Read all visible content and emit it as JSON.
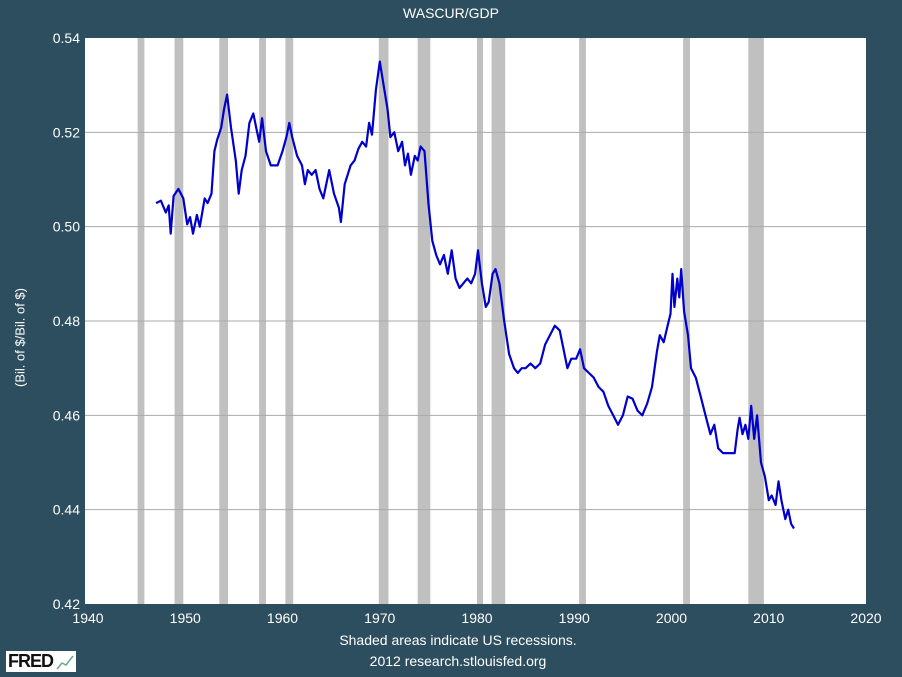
{
  "chart_data": {
    "type": "line",
    "title": "WASCUR/GDP",
    "ylabel": "(Bil. of $/Bil. of $)",
    "xlabel": "",
    "xlim": [
      1940,
      2020
    ],
    "ylim": [
      0.42,
      0.54
    ],
    "xticks": [
      1940,
      1950,
      1960,
      1970,
      1980,
      1990,
      2000,
      2010,
      2020
    ],
    "yticks": [
      "0.42",
      "0.44",
      "0.46",
      "0.48",
      "0.50",
      "0.52",
      "0.54"
    ],
    "grid": "horizontal",
    "line_color": "#0000cc",
    "recession_color": "#c0c0c0",
    "recessions": [
      [
        1945.1,
        1945.8
      ],
      [
        1948.9,
        1949.8
      ],
      [
        1953.5,
        1954.4
      ],
      [
        1957.6,
        1958.3
      ],
      [
        1960.3,
        1961.1
      ],
      [
        1969.9,
        1970.9
      ],
      [
        1973.9,
        1975.2
      ],
      [
        1980.0,
        1980.5
      ],
      [
        1981.5,
        1982.9
      ],
      [
        1990.5,
        1991.2
      ],
      [
        2001.2,
        2001.9
      ],
      [
        2007.9,
        2009.5
      ]
    ],
    "points": [
      [
        1947.0,
        0.505
      ],
      [
        1947.5,
        0.5055
      ],
      [
        1948.0,
        0.503
      ],
      [
        1948.3,
        0.5045
      ],
      [
        1948.5,
        0.4985
      ],
      [
        1948.8,
        0.5065
      ],
      [
        1949.3,
        0.508
      ],
      [
        1949.8,
        0.506
      ],
      [
        1950.2,
        0.5005
      ],
      [
        1950.5,
        0.502
      ],
      [
        1950.8,
        0.4985
      ],
      [
        1951.2,
        0.5025
      ],
      [
        1951.5,
        0.5
      ],
      [
        1952.0,
        0.506
      ],
      [
        1952.3,
        0.505
      ],
      [
        1952.7,
        0.507
      ],
      [
        1953.0,
        0.516
      ],
      [
        1953.3,
        0.5185
      ],
      [
        1953.7,
        0.521
      ],
      [
        1954.0,
        0.525
      ],
      [
        1954.3,
        0.528
      ],
      [
        1954.7,
        0.521
      ],
      [
        1955.2,
        0.514
      ],
      [
        1955.5,
        0.507
      ],
      [
        1955.8,
        0.512
      ],
      [
        1956.2,
        0.515
      ],
      [
        1956.6,
        0.522
      ],
      [
        1957.0,
        0.524
      ],
      [
        1957.3,
        0.521
      ],
      [
        1957.6,
        0.518
      ],
      [
        1957.9,
        0.523
      ],
      [
        1958.3,
        0.516
      ],
      [
        1958.8,
        0.513
      ],
      [
        1959.5,
        0.513
      ],
      [
        1960.0,
        0.516
      ],
      [
        1960.4,
        0.519
      ],
      [
        1960.7,
        0.522
      ],
      [
        1961.0,
        0.519
      ],
      [
        1961.5,
        0.515
      ],
      [
        1962.0,
        0.513
      ],
      [
        1962.3,
        0.509
      ],
      [
        1962.6,
        0.512
      ],
      [
        1963.0,
        0.511
      ],
      [
        1963.4,
        0.512
      ],
      [
        1963.8,
        0.508
      ],
      [
        1964.2,
        0.506
      ],
      [
        1964.8,
        0.512
      ],
      [
        1965.3,
        0.507
      ],
      [
        1965.8,
        0.504
      ],
      [
        1966.0,
        0.501
      ],
      [
        1966.4,
        0.509
      ],
      [
        1967.0,
        0.513
      ],
      [
        1967.4,
        0.514
      ],
      [
        1967.8,
        0.5165
      ],
      [
        1968.2,
        0.518
      ],
      [
        1968.6,
        0.517
      ],
      [
        1968.9,
        0.522
      ],
      [
        1969.2,
        0.5195
      ],
      [
        1969.6,
        0.529
      ],
      [
        1970.0,
        0.535
      ],
      [
        1970.4,
        0.53
      ],
      [
        1970.8,
        0.525
      ],
      [
        1971.1,
        0.519
      ],
      [
        1971.5,
        0.52
      ],
      [
        1971.9,
        0.516
      ],
      [
        1972.3,
        0.518
      ],
      [
        1972.6,
        0.513
      ],
      [
        1972.9,
        0.5155
      ],
      [
        1973.2,
        0.511
      ],
      [
        1973.6,
        0.515
      ],
      [
        1973.9,
        0.514
      ],
      [
        1974.2,
        0.517
      ],
      [
        1974.6,
        0.516
      ],
      [
        1975.0,
        0.505
      ],
      [
        1975.4,
        0.497
      ],
      [
        1975.8,
        0.494
      ],
      [
        1976.2,
        0.492
      ],
      [
        1976.6,
        0.494
      ],
      [
        1977.0,
        0.49
      ],
      [
        1977.4,
        0.495
      ],
      [
        1977.8,
        0.489
      ],
      [
        1978.2,
        0.487
      ],
      [
        1978.6,
        0.488
      ],
      [
        1979.0,
        0.489
      ],
      [
        1979.4,
        0.488
      ],
      [
        1979.8,
        0.49
      ],
      [
        1980.1,
        0.495
      ],
      [
        1980.5,
        0.488
      ],
      [
        1980.9,
        0.483
      ],
      [
        1981.2,
        0.484
      ],
      [
        1981.6,
        0.49
      ],
      [
        1981.9,
        0.491
      ],
      [
        1982.3,
        0.488
      ],
      [
        1982.8,
        0.48
      ],
      [
        1983.3,
        0.473
      ],
      [
        1983.8,
        0.47
      ],
      [
        1984.2,
        0.469
      ],
      [
        1984.6,
        0.47
      ],
      [
        1985.0,
        0.47
      ],
      [
        1985.5,
        0.471
      ],
      [
        1986.0,
        0.47
      ],
      [
        1986.5,
        0.471
      ],
      [
        1987.0,
        0.475
      ],
      [
        1987.5,
        0.477
      ],
      [
        1988.0,
        0.479
      ],
      [
        1988.5,
        0.478
      ],
      [
        1989.0,
        0.473
      ],
      [
        1989.3,
        0.47
      ],
      [
        1989.7,
        0.472
      ],
      [
        1990.2,
        0.472
      ],
      [
        1990.6,
        0.474
      ],
      [
        1991.0,
        0.47
      ],
      [
        1991.5,
        0.469
      ],
      [
        1992.0,
        0.468
      ],
      [
        1992.5,
        0.466
      ],
      [
        1993.0,
        0.465
      ],
      [
        1993.5,
        0.462
      ],
      [
        1994.0,
        0.46
      ],
      [
        1994.5,
        0.458
      ],
      [
        1995.0,
        0.46
      ],
      [
        1995.5,
        0.464
      ],
      [
        1996.0,
        0.4635
      ],
      [
        1996.5,
        0.461
      ],
      [
        1997.0,
        0.46
      ],
      [
        1997.5,
        0.4625
      ],
      [
        1998.0,
        0.466
      ],
      [
        1998.5,
        0.4735
      ],
      [
        1998.8,
        0.477
      ],
      [
        1999.2,
        0.4755
      ],
      [
        1999.6,
        0.479
      ],
      [
        1999.9,
        0.4815
      ],
      [
        2000.1,
        0.49
      ],
      [
        2000.3,
        0.483
      ],
      [
        2000.6,
        0.489
      ],
      [
        2000.8,
        0.485
      ],
      [
        2001.0,
        0.491
      ],
      [
        2001.3,
        0.482
      ],
      [
        2001.7,
        0.477
      ],
      [
        2002.0,
        0.47
      ],
      [
        2002.5,
        0.468
      ],
      [
        2003.0,
        0.464
      ],
      [
        2003.5,
        0.46
      ],
      [
        2004.0,
        0.456
      ],
      [
        2004.4,
        0.458
      ],
      [
        2004.8,
        0.453
      ],
      [
        2005.3,
        0.452
      ],
      [
        2006.0,
        0.452
      ],
      [
        2006.5,
        0.452
      ],
      [
        2006.8,
        0.457
      ],
      [
        2007.0,
        0.4595
      ],
      [
        2007.3,
        0.456
      ],
      [
        2007.6,
        0.458
      ],
      [
        2007.9,
        0.455
      ],
      [
        2008.2,
        0.462
      ],
      [
        2008.5,
        0.455
      ],
      [
        2008.8,
        0.46
      ],
      [
        2009.2,
        0.45
      ],
      [
        2009.6,
        0.447
      ],
      [
        2010.0,
        0.442
      ],
      [
        2010.3,
        0.443
      ],
      [
        2010.7,
        0.441
      ],
      [
        2011.0,
        0.446
      ],
      [
        2011.3,
        0.442
      ],
      [
        2011.7,
        0.438
      ],
      [
        2012.0,
        0.44
      ],
      [
        2012.3,
        0.437
      ],
      [
        2012.6,
        0.436
      ]
    ]
  },
  "footer": {
    "note": "Shaded areas indicate US recessions.",
    "source": "2012 research.stlouisfed.org",
    "logo": "FRED"
  }
}
